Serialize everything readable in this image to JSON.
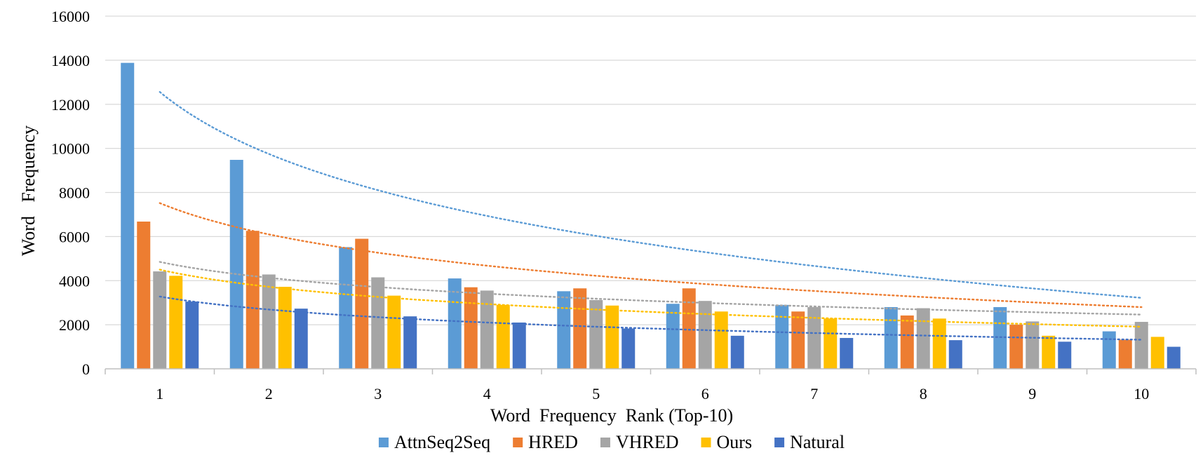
{
  "chart_data": {
    "type": "bar",
    "title": "",
    "xlabel": "Word  Frequency  Rank (Top-10)",
    "ylabel": "Word   Frequency",
    "categories": [
      "1",
      "2",
      "3",
      "4",
      "5",
      "6",
      "7",
      "8",
      "9",
      "10"
    ],
    "ylim": [
      0,
      16000
    ],
    "yticks": [
      "0",
      "2000",
      "4000",
      "6000",
      "8000",
      "10000",
      "12000",
      "14000",
      "16000"
    ],
    "grid": true,
    "legend_position": "bottom",
    "trendlines": "logarithmic (dotted), one per series",
    "series": [
      {
        "name": "AttnSeq2Seq",
        "color": "#5B9BD5",
        "values": [
          13880,
          9480,
          5520,
          4100,
          3520,
          2950,
          2900,
          2800,
          2800,
          1700
        ],
        "trend": [
          12560,
          9750,
          8110,
          6940,
          6040,
          5300,
          4670,
          4130,
          3650,
          3220
        ]
      },
      {
        "name": "HRED",
        "color": "#ED7D31",
        "values": [
          6680,
          6260,
          5900,
          3700,
          3650,
          3650,
          2600,
          2420,
          2000,
          1320
        ],
        "trend": [
          7520,
          6100,
          5270,
          4680,
          4220,
          3850,
          3540,
          3260,
          3020,
          2800
        ]
      },
      {
        "name": "VHRED",
        "color": "#A5A5A5",
        "values": [
          4420,
          4280,
          4150,
          3550,
          3120,
          3080,
          2800,
          2750,
          2150,
          2130
        ],
        "trend": [
          4850,
          4130,
          3710,
          3410,
          3180,
          2990,
          2830,
          2690,
          2570,
          2460
        ]
      },
      {
        "name": "Ours",
        "color": "#FFC000",
        "values": [
          4220,
          3720,
          3320,
          2900,
          2870,
          2600,
          2280,
          2280,
          1500,
          1450
        ],
        "trend": [
          4500,
          3720,
          3270,
          2940,
          2690,
          2480,
          2310,
          2160,
          2030,
          1910
        ]
      },
      {
        "name": "Natural",
        "color": "#4472C4",
        "values": [
          3050,
          2730,
          2380,
          2100,
          1830,
          1500,
          1400,
          1300,
          1230,
          1000
        ],
        "trend": [
          3280,
          2690,
          2350,
          2100,
          1910,
          1760,
          1630,
          1510,
          1410,
          1320
        ]
      }
    ]
  }
}
